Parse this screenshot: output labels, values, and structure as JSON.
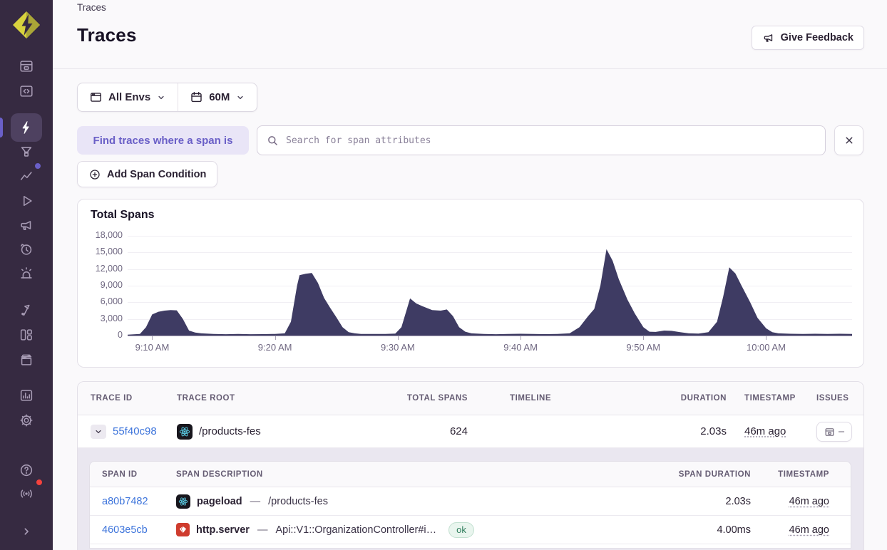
{
  "breadcrumb": "Traces",
  "header": {
    "title": "Traces",
    "feedback_label": "Give Feedback"
  },
  "filters": {
    "env_label": "All Envs",
    "time_label": "60M"
  },
  "search": {
    "chip_label": "Find traces where a span is",
    "placeholder": "Search for span attributes"
  },
  "toolbar": {
    "add_condition_label": "Add Span Condition"
  },
  "sidebar": {
    "active_item": "traces",
    "items": [
      {
        "name": "org-logo",
        "icon": "diamond-bolt-icon"
      },
      {
        "name": "issues",
        "icon": "inbox-icon"
      },
      {
        "name": "projects",
        "icon": "code-folder-icon"
      },
      {
        "name": "traces",
        "icon": "lightning-icon",
        "active": true
      },
      {
        "name": "profiling",
        "icon": "funnel-icon"
      },
      {
        "name": "performance",
        "icon": "chart-line-icon",
        "dot_color": "#6a5fc8"
      },
      {
        "name": "replays",
        "icon": "play-icon"
      },
      {
        "name": "user-feedback",
        "icon": "megaphone-icon"
      },
      {
        "name": "crons",
        "icon": "clock-icon"
      },
      {
        "name": "alerts",
        "icon": "siren-icon"
      },
      {
        "name": "releases",
        "icon": "flag-icon"
      },
      {
        "name": "dashboards",
        "icon": "dashboard-icon"
      },
      {
        "name": "stories",
        "icon": "archive-icon"
      },
      {
        "name": "stats",
        "icon": "bar-chart-icon"
      },
      {
        "name": "settings",
        "icon": "gear-icon"
      },
      {
        "name": "help",
        "icon": "question-icon"
      },
      {
        "name": "whats-new",
        "icon": "broadcast-icon",
        "dot_color": "#f6423d"
      },
      {
        "name": "collapse",
        "icon": "chevron-right-icon"
      }
    ]
  },
  "chart_data": {
    "type": "area",
    "title": "Total Spans",
    "fill_color": "#3e3b63",
    "ylim": [
      0,
      18000
    ],
    "domain_minutes": [
      0,
      59
    ],
    "y_ticks": [
      0,
      3000,
      6000,
      9000,
      12000,
      15000,
      18000
    ],
    "y_tick_labels": [
      "0",
      "3,000",
      "6,000",
      "9,000",
      "12,000",
      "15,000",
      "18,000"
    ],
    "x_tick_minutes": [
      2,
      12,
      22,
      32,
      42,
      52
    ],
    "x_tick_labels": [
      "9:10 AM",
      "9:20 AM",
      "9:30 AM",
      "9:40 AM",
      "9:50 AM",
      "10:00 AM"
    ],
    "grid": true,
    "legend": false,
    "points": [
      [
        0,
        150
      ],
      [
        1,
        300
      ],
      [
        1.5,
        1500
      ],
      [
        2,
        3800
      ],
      [
        2.5,
        4300
      ],
      [
        3,
        4500
      ],
      [
        3.5,
        4600
      ],
      [
        4,
        4550
      ],
      [
        4.5,
        3000
      ],
      [
        5,
        900
      ],
      [
        5.5,
        550
      ],
      [
        6,
        400
      ],
      [
        7,
        300
      ],
      [
        8,
        250
      ],
      [
        9,
        280
      ],
      [
        10,
        250
      ],
      [
        11,
        260
      ],
      [
        12,
        300
      ],
      [
        12.8,
        400
      ],
      [
        13.3,
        2500
      ],
      [
        13.8,
        9000
      ],
      [
        14,
        10900
      ],
      [
        14.5,
        11150
      ],
      [
        15,
        11300
      ],
      [
        15.5,
        9500
      ],
      [
        16,
        6800
      ],
      [
        16.5,
        5000
      ],
      [
        17,
        3300
      ],
      [
        17.5,
        1500
      ],
      [
        18,
        600
      ],
      [
        18.5,
        400
      ],
      [
        19,
        300
      ],
      [
        20,
        280
      ],
      [
        21,
        300
      ],
      [
        21.8,
        350
      ],
      [
        22.3,
        1500
      ],
      [
        22.8,
        5200
      ],
      [
        23,
        6700
      ],
      [
        23.5,
        5800
      ],
      [
        24,
        5300
      ],
      [
        24.8,
        4600
      ],
      [
        25.5,
        4500
      ],
      [
        26,
        4700
      ],
      [
        26.5,
        3500
      ],
      [
        27,
        1500
      ],
      [
        27.5,
        700
      ],
      [
        28,
        400
      ],
      [
        29,
        300
      ],
      [
        30,
        250
      ],
      [
        31,
        280
      ],
      [
        32,
        320
      ],
      [
        33,
        280
      ],
      [
        34,
        260
      ],
      [
        35,
        300
      ],
      [
        36,
        400
      ],
      [
        36.8,
        1500
      ],
      [
        37.5,
        3500
      ],
      [
        38,
        4800
      ],
      [
        38.5,
        9000
      ],
      [
        39,
        15600
      ],
      [
        39.5,
        13500
      ],
      [
        40,
        10200
      ],
      [
        40.7,
        6500
      ],
      [
        41.3,
        4000
      ],
      [
        42,
        1500
      ],
      [
        42.5,
        700
      ],
      [
        43,
        650
      ],
      [
        43.7,
        900
      ],
      [
        44.3,
        850
      ],
      [
        45,
        600
      ],
      [
        45.7,
        400
      ],
      [
        46.5,
        350
      ],
      [
        47.3,
        600
      ],
      [
        48,
        2500
      ],
      [
        48.5,
        7000
      ],
      [
        49,
        12300
      ],
      [
        49.5,
        11200
      ],
      [
        50,
        9000
      ],
      [
        50.7,
        6000
      ],
      [
        51.3,
        3200
      ],
      [
        52,
        1300
      ],
      [
        52.5,
        600
      ],
      [
        53,
        400
      ],
      [
        54,
        320
      ],
      [
        55,
        300
      ],
      [
        56,
        320
      ],
      [
        57,
        300
      ],
      [
        58,
        320
      ],
      [
        59,
        300
      ]
    ]
  },
  "traces_table": {
    "columns": [
      "TRACE ID",
      "TRACE ROOT",
      "TOTAL SPANS",
      "TIMELINE",
      "DURATION",
      "TIMESTAMP",
      "ISSUES"
    ],
    "rows": [
      {
        "trace_id": "55f40c98",
        "platform_icon": "react-icon",
        "trace_root": "/products-fes",
        "total_spans": "624",
        "duration": "2.03s",
        "timestamp": "46m ago",
        "issues_value": "–",
        "timeline": {
          "track": null,
          "segments": [
            {
              "left": 0,
              "width": 6.8,
              "color": "#8e4d79"
            },
            {
              "left": 6.8,
              "width": 50.2,
              "color": "#46416b"
            },
            {
              "left": 57,
              "width": 43,
              "color": "#8e4d79"
            }
          ]
        }
      }
    ]
  },
  "spans_table": {
    "columns": [
      "SPAN ID",
      "SPAN DESCRIPTION",
      "SPAN DURATION",
      "TIMESTAMP"
    ],
    "rows": [
      {
        "span_id": "a80b7482",
        "platform_icon": "react-icon",
        "op": "pageload",
        "separator": "—",
        "description": "/products-fes",
        "status": "",
        "duration": "2.03s",
        "timestamp": "46m ago",
        "bar": {
          "track": null,
          "segments": [
            {
              "left": 0,
              "width": 100,
              "color": "#8e4d79"
            }
          ]
        }
      },
      {
        "span_id": "4603e5cb",
        "platform_icon": "ruby-icon",
        "op": "http.server",
        "separator": "—",
        "description": "Api::V1::OrganizationController#i…",
        "status": "ok",
        "duration": "4.00ms",
        "timestamp": "46m ago",
        "bar": {
          "track": "#e9e5ef",
          "segments": [
            {
              "left": 4.5,
              "width": 3,
              "color": "#46416b"
            }
          ]
        }
      }
    ]
  },
  "colors": {
    "sidebar_bg": "#362a41",
    "accent_purple": "#6a5fc8",
    "link_blue": "#3d74db",
    "timeline_mauve": "#8e4d79",
    "timeline_indigo": "#46416b",
    "chart_fill": "#3e3b63",
    "ok_green": "#2f7d5c",
    "alert_red": "#f6423d"
  }
}
